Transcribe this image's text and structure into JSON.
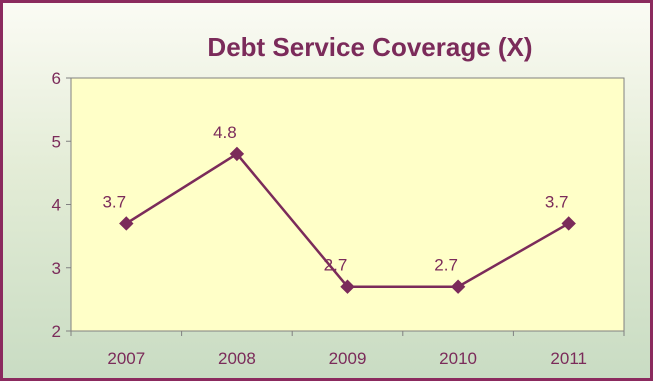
{
  "chart_data": {
    "type": "line",
    "title": "Debt Service Coverage (X)",
    "categories": [
      "2007",
      "2008",
      "2009",
      "2010",
      "2011"
    ],
    "series": [
      {
        "values": [
          3.7,
          4.8,
          2.7,
          2.7,
          3.7
        ]
      }
    ],
    "data_labels": [
      "3.7",
      "4.8",
      "2.7",
      "2.7",
      "3.7"
    ],
    "ylim": [
      2,
      6
    ],
    "yticks": [
      2,
      3,
      4,
      5,
      6
    ],
    "xlabel": "",
    "ylabel": "",
    "grid": false,
    "legend": "none",
    "colors": {
      "line": "#7b2b5a",
      "marker": "#7b2b5a",
      "plot_background": "#ffffc8",
      "border": "#8b2a5e",
      "text": "#7b2b5a"
    }
  }
}
